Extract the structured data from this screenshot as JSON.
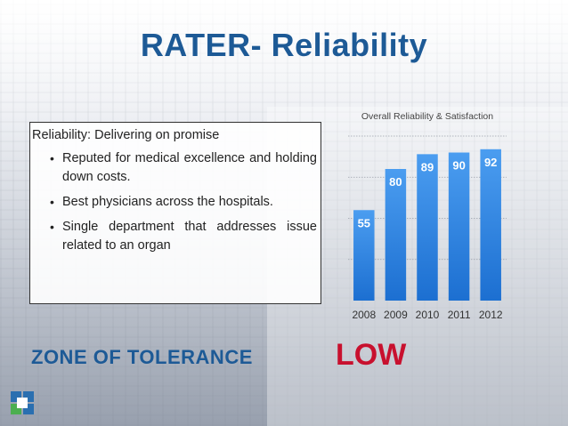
{
  "slide": {
    "title": "RATER- Reliability",
    "zone_label": "ZONE OF TOLERANCE",
    "zone_value": "LOW"
  },
  "textbox": {
    "heading": "Reliability: Delivering on promise",
    "bullets": [
      "Reputed for medical excellence and holding down costs.",
      "Best physicians across the hospitals.",
      "Single department that addresses issue related to an organ"
    ]
  },
  "colors": {
    "title": "#1d5a96",
    "zone_value": "#c8102e",
    "bar_top": "#4b9df0",
    "bar_bottom": "#1c6fd1",
    "label_text": "#ffffff"
  },
  "chart_data": {
    "type": "bar",
    "title": "Overall Reliability & Satisfaction",
    "categories": [
      "2008",
      "2009",
      "2010",
      "2011",
      "2012"
    ],
    "values": [
      55,
      80,
      89,
      90,
      92
    ],
    "xlabel": "",
    "ylabel": "",
    "ylim": [
      0,
      100
    ],
    "grid": true
  }
}
